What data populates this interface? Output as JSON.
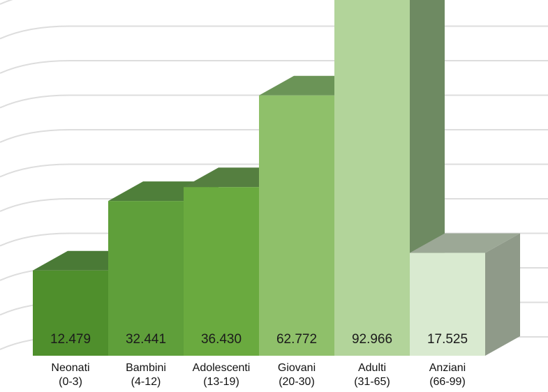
{
  "chart_data": {
    "type": "bar",
    "title": "",
    "xlabel": "",
    "ylabel": "",
    "categories": [
      [
        "Neonati",
        "(0-3)"
      ],
      [
        "Bambini",
        "(4-12)"
      ],
      [
        "Adolescenti",
        "(13-19)"
      ],
      [
        "Giovani",
        "(20-30)"
      ],
      [
        "Adulti",
        "(31-65)"
      ],
      [
        "Anziani",
        "(66-99)"
      ]
    ],
    "values": [
      12479,
      32441,
      36430,
      62772,
      92966,
      17525
    ],
    "value_labels": [
      "12.479",
      "32.441",
      "36.430",
      "62.772",
      "92.966",
      "17.525"
    ],
    "ylim": [
      0,
      100000
    ],
    "grid": true,
    "style": "3d-column",
    "colors": {
      "front": [
        "#4f8f2c",
        "#5f9f3a",
        "#6aaa3f",
        "#8fc06a",
        "#b2d49a",
        "#d9ead0"
      ],
      "top": [
        "#4a7a36",
        "#4f7f3a",
        "#557f40",
        "#6b9457",
        "#86a07a",
        "#9ca896"
      ],
      "side": [
        "#3f6f2a",
        "#446f32",
        "#4a7a36",
        "#5e8a4c",
        "#6e8a62",
        "#8f9a89"
      ],
      "grid": "#dddddd"
    }
  }
}
